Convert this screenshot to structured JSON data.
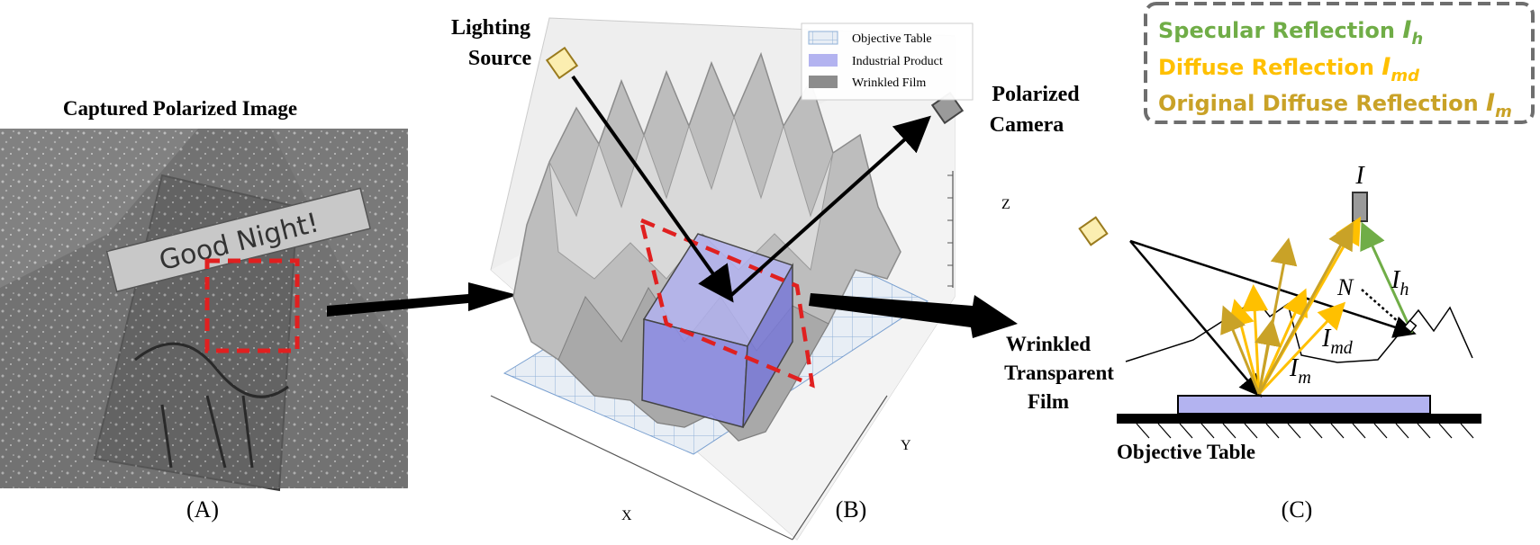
{
  "panel_a": {
    "title": "Captured Polarized Image",
    "sign_text": "Good Night!",
    "caption": "(A)"
  },
  "panel_b": {
    "lighting_label_1": "Lighting",
    "lighting_label_2": "Source",
    "camera_label_1": "Polarized",
    "camera_label_2": "Camera",
    "legend": [
      {
        "label": "Objective Table",
        "color": "#c9d6e8"
      },
      {
        "label": "Industrial Product",
        "color": "#b3b3f0"
      },
      {
        "label": "Wrinkled Film",
        "color": "#8c8c8c"
      }
    ],
    "axis_x": "X",
    "axis_y": "Y",
    "axis_z": "Z",
    "caption": "(B)"
  },
  "panel_c": {
    "legend": [
      {
        "text": "Specular Reflection ",
        "symbol": "I",
        "sub": "h",
        "color": "#70ad47"
      },
      {
        "text": "Diffuse Reflection ",
        "symbol": "I",
        "sub": "md",
        "color": "#ffc000"
      },
      {
        "text": "Original Diffuse Reflection ",
        "symbol": "I",
        "sub": "m",
        "color": "#c9a227"
      }
    ],
    "film_label_1": "Wrinkled",
    "film_label_2": "Transparent",
    "film_label_3": "Film",
    "table_label": "Objective Table",
    "cam_symbol": "I",
    "normal_symbol": "N",
    "ih_symbol": "I",
    "ih_sub": "h",
    "imd_symbol": "I",
    "imd_sub": "md",
    "im_symbol": "I",
    "im_sub": "m",
    "caption": "(C)"
  },
  "colors": {
    "specular": "#70ad47",
    "diffuse": "#ffc000",
    "original_diffuse": "#c9a227",
    "product": "#b3b3f0",
    "highlight": "#e02020"
  }
}
